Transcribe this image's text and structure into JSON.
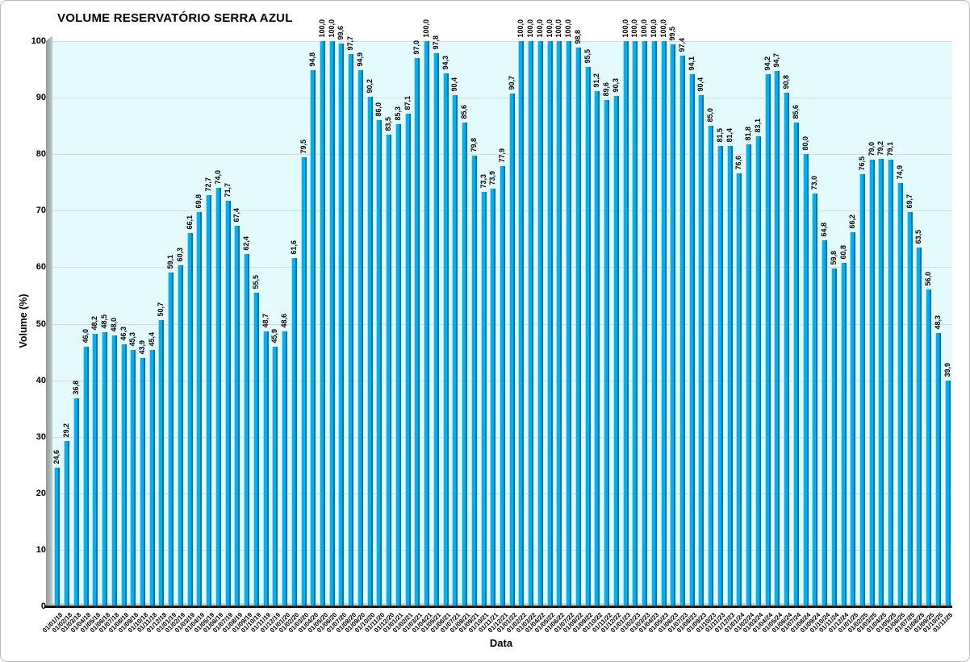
{
  "chart_data": {
    "type": "bar",
    "title": "VOLUME RESERVATÓRIO SERRA AZUL",
    "xlabel": "Data",
    "ylabel": "Volume (%)",
    "ylim": [
      0,
      100
    ],
    "ytick_step": 10,
    "ytick_labels": [
      "0",
      "10",
      "20",
      "30",
      "40",
      "50",
      "60",
      "70",
      "80",
      "90",
      "100"
    ],
    "grid": true,
    "legend_position": "none",
    "plot_bg_color": "#e4fbfe",
    "bar_color": "#00b0f0",
    "bar_edge_color": "#0274ab",
    "gridline_color": "#d9d9d9",
    "categories": [
      "01/01/18",
      "01/02/18",
      "01/03/18",
      "01/04/18",
      "01/05/18",
      "01/06/18",
      "01/07/18",
      "01/08/18",
      "01/09/18",
      "01/10/18",
      "01/11/18",
      "01/12/18",
      "01/01/19",
      "01/02/19",
      "01/03/19",
      "01/04/19",
      "01/05/19",
      "01/06/19",
      "01/07/19",
      "01/08/19",
      "01/09/19",
      "01/10/19",
      "01/11/19",
      "01/12/19",
      "01/01/20",
      "01/02/20",
      "01/03/20",
      "01/04/20",
      "01/05/20",
      "01/06/20",
      "01/07/20",
      "01/08/20",
      "01/09/20",
      "01/10/20",
      "01/11/20",
      "01/12/20",
      "01/01/21",
      "01/02/21",
      "01/03/21",
      "01/04/21",
      "01/05/21",
      "01/06/21",
      "01/07/21",
      "01/08/21",
      "01/09/21",
      "01/10/21",
      "01/11/21",
      "01/12/21",
      "01/01/22",
      "01/02/22",
      "01/03/22",
      "01/04/22",
      "01/05/22",
      "01/06/22",
      "01/07/22",
      "01/08/22",
      "01/09/22",
      "01/10/22",
      "01/11/22",
      "01/12/22",
      "01/01/23",
      "01/02/23",
      "01/03/23",
      "01/04/23",
      "01/05/23",
      "01/06/23",
      "01/07/23",
      "01/08/23",
      "01/09/23",
      "01/10/23",
      "01/11/23",
      "01/12/23",
      "01/01/24",
      "01/02/24",
      "01/03/24",
      "01/04/24",
      "01/05/24",
      "01/06/24",
      "01/07/24",
      "01/08/24",
      "01/09/24",
      "01/10/24",
      "01/11/24",
      "01/12/24",
      "01/01/25",
      "01/02/25",
      "01/03/25",
      "01/04/25",
      "01/05/25",
      "01/06/25",
      "01/07/25",
      "01/08/25",
      "01/09/25",
      "01/10/25",
      "01/11/25"
    ],
    "values": [
      24.6,
      29.2,
      36.8,
      46.0,
      48.2,
      48.5,
      48.0,
      46.3,
      45.3,
      43.9,
      45.4,
      50.7,
      59.1,
      60.3,
      66.1,
      69.8,
      72.7,
      74.0,
      71.7,
      67.4,
      62.4,
      55.5,
      48.7,
      45.9,
      48.6,
      61.6,
      79.5,
      94.8,
      100.0,
      100.0,
      99.6,
      97.7,
      94.9,
      90.2,
      86.0,
      83.5,
      85.3,
      87.1,
      97.0,
      100.0,
      97.8,
      94.3,
      90.4,
      85.6,
      79.8,
      73.3,
      73.9,
      77.9,
      90.7,
      100.0,
      100.0,
      100.0,
      100.0,
      100.0,
      100.0,
      98.8,
      95.5,
      91.2,
      89.6,
      90.3,
      100.0,
      100.0,
      100.0,
      100.0,
      100.0,
      99.5,
      97.4,
      94.1,
      90.4,
      85.0,
      81.5,
      81.4,
      76.6,
      81.8,
      83.1,
      94.2,
      94.7,
      90.8,
      85.6,
      80.0,
      73.0,
      64.8,
      59.8,
      60.8,
      66.2,
      76.5,
      79.0,
      79.2,
      79.1,
      74.9,
      69.7,
      63.5,
      56.0,
      48.3,
      39.9
    ],
    "value_labels": [
      "24,6",
      "29,2",
      "36,8",
      "46,0",
      "48,2",
      "48,5",
      "48,0",
      "46,3",
      "45,3",
      "43,9",
      "45,4",
      "50,7",
      "59,1",
      "60,3",
      "66,1",
      "69,8",
      "72,7",
      "74,0",
      "71,7",
      "67,4",
      "62,4",
      "55,5",
      "48,7",
      "45,9",
      "48,6",
      "61,6",
      "79,5",
      "94,8",
      "100,0",
      "100,0",
      "99,6",
      "97,7",
      "94,9",
      "90,2",
      "86,0",
      "83,5",
      "85,3",
      "87,1",
      "97,0",
      "100,0",
      "97,8",
      "94,3",
      "90,4",
      "85,6",
      "79,8",
      "73,3",
      "73,9",
      "77,9",
      "90,7",
      "100,0",
      "100,0",
      "100,0",
      "100,0",
      "100,0",
      "100,0",
      "98,8",
      "95,5",
      "91,2",
      "89,6",
      "90,3",
      "100,0",
      "100,0",
      "100,0",
      "100,0",
      "100,0",
      "99,5",
      "97,4",
      "94,1",
      "90,4",
      "85,0",
      "81,5",
      "81,4",
      "76,6",
      "81,8",
      "83,1",
      "94,2",
      "94,7",
      "90,8",
      "85,6",
      "80,0",
      "73,0",
      "64,8",
      "59,8",
      "60,8",
      "66,2",
      "76,5",
      "79,0",
      "79,2",
      "79,1",
      "74,9",
      "69,7",
      "63,5",
      "56,0",
      "48,3",
      "39,9"
    ]
  }
}
